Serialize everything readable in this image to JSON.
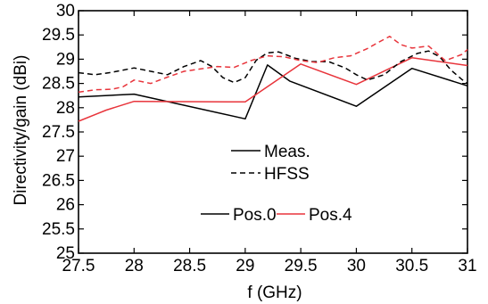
{
  "chart_data": {
    "type": "line",
    "xlabel": "f (GHz)",
    "ylabel": "Directivity/gain (dBi)",
    "xlim": [
      27.5,
      31
    ],
    "ylim": [
      25,
      30
    ],
    "xticks": [
      27.5,
      28,
      28.5,
      29,
      29.5,
      30,
      30.5,
      31
    ],
    "yticks": [
      25,
      25.5,
      26,
      26.5,
      27,
      27.5,
      28,
      28.5,
      29,
      29.5,
      30
    ],
    "xtick_labels": [
      "27.5",
      "28",
      "28.5",
      "29",
      "29.5",
      "30",
      "30.5",
      "31"
    ],
    "ytick_labels": [
      "25",
      "25.5",
      "26",
      "26.5",
      "27",
      "27.5",
      "28",
      "28.5",
      "29",
      "29.5",
      "30"
    ],
    "grid": false,
    "legend_style": {
      "labels": [
        "Meas.",
        "HFSS"
      ],
      "dashes": [
        "solid",
        "dashed"
      ]
    },
    "legend_color": {
      "labels": [
        "Pos.0",
        "Pos.4"
      ],
      "colors": [
        "#000000",
        "#e8343b"
      ]
    },
    "series": [
      {
        "name": "Meas. Pos.0",
        "color": "#000000",
        "dash": "solid",
        "x": [
          27.5,
          28,
          29,
          29.2,
          29.4,
          30,
          30.5,
          31
        ],
        "y": [
          28.22,
          28.28,
          27.77,
          28.88,
          28.55,
          28.03,
          28.81,
          28.45
        ]
      },
      {
        "name": "Meas. Pos.4",
        "color": "#e8343b",
        "dash": "solid",
        "x": [
          27.5,
          27.75,
          28,
          29,
          29.5,
          30,
          30.5,
          31
        ],
        "y": [
          27.72,
          27.95,
          28.13,
          28.12,
          28.9,
          28.48,
          29.03,
          28.87
        ]
      },
      {
        "name": "HFSS Pos.0",
        "color": "#000000",
        "dash": "dashed",
        "x": [
          27.5,
          27.65,
          27.8,
          28.0,
          28.15,
          28.3,
          28.45,
          28.6,
          28.7,
          28.8,
          28.9,
          29.0,
          29.1,
          29.2,
          29.3,
          29.45,
          29.6,
          29.75,
          29.9,
          30.0,
          30.1,
          30.25,
          30.4,
          30.55,
          30.65,
          30.75,
          30.85,
          30.95,
          31.0
        ],
        "y": [
          28.72,
          28.68,
          28.73,
          28.82,
          28.75,
          28.68,
          28.85,
          28.97,
          28.85,
          28.62,
          28.52,
          28.62,
          28.98,
          29.13,
          29.15,
          29.02,
          28.95,
          28.95,
          28.82,
          28.68,
          28.57,
          28.68,
          28.95,
          29.12,
          29.17,
          29.05,
          28.78,
          28.58,
          28.5
        ]
      },
      {
        "name": "HFSS Pos.4",
        "color": "#e8343b",
        "dash": "dashed",
        "x": [
          27.5,
          27.65,
          27.8,
          27.9,
          28.0,
          28.15,
          28.3,
          28.45,
          28.6,
          28.75,
          28.9,
          29.05,
          29.2,
          29.35,
          29.5,
          29.65,
          29.8,
          29.95,
          30.1,
          30.2,
          30.3,
          30.4,
          30.5,
          30.65,
          30.8,
          30.95,
          31.0
        ],
        "y": [
          28.32,
          28.37,
          28.38,
          28.43,
          28.57,
          28.5,
          28.63,
          28.75,
          28.8,
          28.85,
          28.83,
          28.97,
          29.07,
          29.05,
          28.97,
          28.93,
          29.03,
          29.07,
          29.22,
          29.35,
          29.47,
          29.3,
          29.23,
          29.27,
          28.97,
          29.1,
          29.2
        ]
      }
    ]
  }
}
